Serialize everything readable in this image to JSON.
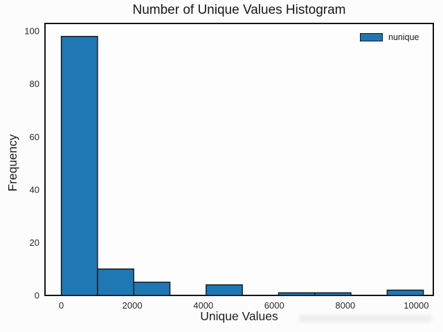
{
  "chart_data": {
    "type": "bar",
    "subtype": "histogram",
    "title": "Number of Unique Values Histogram",
    "xlabel": "Unique Values",
    "ylabel": "Frequency",
    "series": [
      {
        "name": "nunique",
        "counts": [
          98,
          10,
          5,
          0,
          4,
          0,
          1,
          1,
          0,
          2
        ]
      }
    ],
    "bin_edges": [
      0,
      1020,
      2040,
      3060,
      4080,
      5100,
      6120,
      7140,
      8160,
      9180,
      10200
    ],
    "x_tick_values": [
      0,
      2000,
      4000,
      6000,
      8000,
      10000
    ],
    "x_tick_labels": [
      "0",
      "2000",
      "4000",
      "6000",
      "8000",
      "10000"
    ],
    "y_tick_values": [
      0,
      20,
      40,
      60,
      80,
      100
    ],
    "y_tick_labels": [
      "0",
      "20",
      "40",
      "60",
      "80",
      "100"
    ],
    "xlim": [
      -460,
      10480
    ],
    "ylim": [
      0,
      102.9
    ],
    "grid": false,
    "legend_position": "upper-right",
    "colors": {
      "bar_fill": "#1f77b4",
      "bar_edge": "#131313",
      "frame": "#141414",
      "plot_background": "#fdfdfd",
      "tick_text": "#262626"
    }
  }
}
